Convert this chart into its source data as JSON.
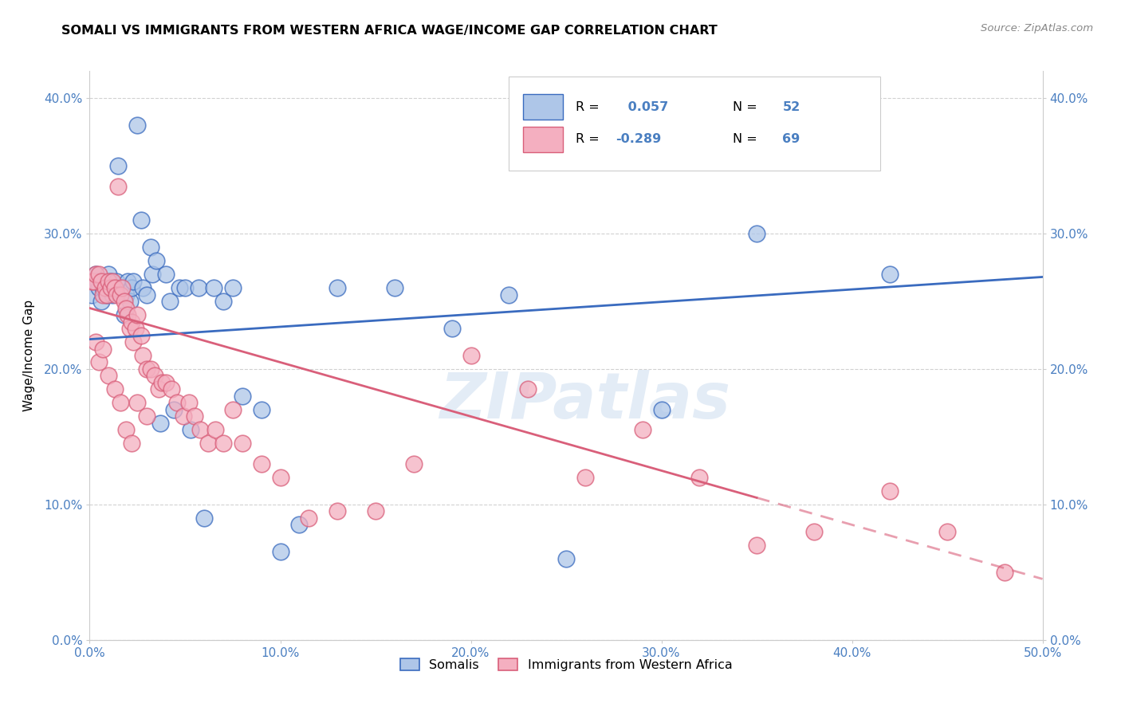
{
  "title": "SOMALI VS IMMIGRANTS FROM WESTERN AFRICA WAGE/INCOME GAP CORRELATION CHART",
  "source": "Source: ZipAtlas.com",
  "ylabel": "Wage/Income Gap",
  "xlim": [
    0.0,
    0.5
  ],
  "ylim": [
    0.0,
    0.42
  ],
  "xticks": [
    0.0,
    0.1,
    0.2,
    0.3,
    0.4,
    0.5
  ],
  "yticks": [
    0.0,
    0.1,
    0.2,
    0.3,
    0.4
  ],
  "xticklabels": [
    "0.0%",
    "10.0%",
    "20.0%",
    "30.0%",
    "40.0%",
    "50.0%"
  ],
  "yticklabels": [
    "0.0%",
    "10.0%",
    "20.0%",
    "30.0%",
    "40.0%"
  ],
  "legend_label1": "Somalis",
  "legend_label2": "Immigrants from Western Africa",
  "R1": 0.057,
  "N1": 52,
  "R2": -0.289,
  "N2": 69,
  "color1": "#aec6e8",
  "color2": "#f4afc0",
  "line_color1": "#3a6bbf",
  "line_color2": "#d95f7a",
  "watermark": "ZIPatlas",
  "somali_x": [
    0.001,
    0.003,
    0.004,
    0.005,
    0.006,
    0.007,
    0.008,
    0.009,
    0.01,
    0.011,
    0.012,
    0.013,
    0.014,
    0.015,
    0.016,
    0.018,
    0.019,
    0.02,
    0.021,
    0.022,
    0.023,
    0.025,
    0.027,
    0.028,
    0.03,
    0.032,
    0.033,
    0.035,
    0.037,
    0.04,
    0.042,
    0.044,
    0.047,
    0.05,
    0.053,
    0.057,
    0.06,
    0.065,
    0.07,
    0.075,
    0.08,
    0.09,
    0.1,
    0.11,
    0.13,
    0.16,
    0.19,
    0.22,
    0.25,
    0.3,
    0.35,
    0.42
  ],
  "somali_y": [
    0.255,
    0.27,
    0.265,
    0.26,
    0.25,
    0.26,
    0.265,
    0.255,
    0.27,
    0.265,
    0.255,
    0.26,
    0.265,
    0.35,
    0.26,
    0.24,
    0.255,
    0.265,
    0.25,
    0.26,
    0.265,
    0.38,
    0.31,
    0.26,
    0.255,
    0.29,
    0.27,
    0.28,
    0.16,
    0.27,
    0.25,
    0.17,
    0.26,
    0.26,
    0.155,
    0.26,
    0.09,
    0.26,
    0.25,
    0.26,
    0.18,
    0.17,
    0.065,
    0.085,
    0.26,
    0.26,
    0.23,
    0.255,
    0.06,
    0.17,
    0.3,
    0.27
  ],
  "wa_x": [
    0.001,
    0.002,
    0.003,
    0.005,
    0.006,
    0.007,
    0.008,
    0.009,
    0.01,
    0.011,
    0.012,
    0.013,
    0.014,
    0.015,
    0.016,
    0.017,
    0.018,
    0.019,
    0.02,
    0.021,
    0.022,
    0.023,
    0.024,
    0.025,
    0.027,
    0.028,
    0.03,
    0.032,
    0.034,
    0.036,
    0.038,
    0.04,
    0.043,
    0.046,
    0.049,
    0.052,
    0.055,
    0.058,
    0.062,
    0.066,
    0.07,
    0.075,
    0.08,
    0.09,
    0.1,
    0.115,
    0.13,
    0.15,
    0.17,
    0.2,
    0.23,
    0.26,
    0.29,
    0.32,
    0.35,
    0.38,
    0.42,
    0.45,
    0.48,
    0.003,
    0.005,
    0.007,
    0.01,
    0.013,
    0.016,
    0.019,
    0.022,
    0.025,
    0.03
  ],
  "wa_y": [
    0.265,
    0.265,
    0.27,
    0.27,
    0.265,
    0.255,
    0.26,
    0.255,
    0.265,
    0.26,
    0.265,
    0.26,
    0.255,
    0.335,
    0.255,
    0.26,
    0.25,
    0.245,
    0.24,
    0.23,
    0.235,
    0.22,
    0.23,
    0.24,
    0.225,
    0.21,
    0.2,
    0.2,
    0.195,
    0.185,
    0.19,
    0.19,
    0.185,
    0.175,
    0.165,
    0.175,
    0.165,
    0.155,
    0.145,
    0.155,
    0.145,
    0.17,
    0.145,
    0.13,
    0.12,
    0.09,
    0.095,
    0.095,
    0.13,
    0.21,
    0.185,
    0.12,
    0.155,
    0.12,
    0.07,
    0.08,
    0.11,
    0.08,
    0.05,
    0.22,
    0.205,
    0.215,
    0.195,
    0.185,
    0.175,
    0.155,
    0.145,
    0.175,
    0.165
  ]
}
